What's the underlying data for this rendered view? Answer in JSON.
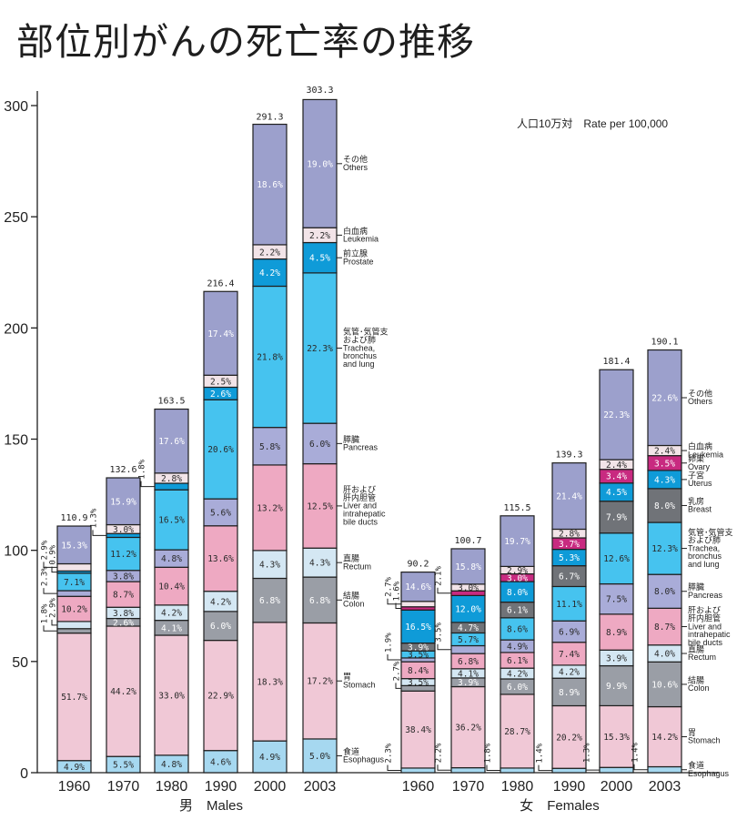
{
  "title": "部位別がんの死亡率の推移",
  "unit_label": "人口10万対　Rate per 100,000",
  "chart_data": {
    "type": "bar",
    "stacked": true,
    "title": "部位別がんの死亡率の推移",
    "ylabel": "人口10万対 Rate per 100,000",
    "xlabel": "",
    "ylim": [
      0,
      300
    ],
    "y_ticks": [
      0,
      50,
      100,
      150,
      200,
      250,
      300
    ],
    "grid": false,
    "segment_values_are": "percent of bar total",
    "groups": [
      {
        "key": "males",
        "name": "男　Males",
        "categories": [
          "1960",
          "1970",
          "1980",
          "1990",
          "2000",
          "2003"
        ],
        "totals": [
          110.9,
          132.6,
          163.5,
          216.4,
          291.3,
          303.3
        ],
        "series": [
          {
            "key": "esophagus",
            "name_ja": "食道",
            "name_en": "Esophagus",
            "color": "#a6d8f0",
            "text_color": "#2a2a2a",
            "values": [
              4.9,
              5.5,
              4.8,
              4.6,
              4.9,
              5.0
            ]
          },
          {
            "key": "stomach",
            "name_ja": "胃",
            "name_en": "Stomach",
            "color": "#f0c8d6",
            "text_color": "#2a2a2a",
            "values": [
              51.7,
              44.2,
              33.0,
              22.9,
              18.3,
              17.2
            ]
          },
          {
            "key": "colon",
            "name_ja": "結腸",
            "name_en": "Colon",
            "color": "#9a9ea6",
            "text_color": "#ffffff",
            "values": [
              1.8,
              2.6,
              4.1,
              6.0,
              6.8,
              6.8
            ]
          },
          {
            "key": "rectum",
            "name_ja": "直腸",
            "name_en": "Rectum",
            "color": "#d4e7f3",
            "text_color": "#2a2a2a",
            "values": [
              2.9,
              3.8,
              4.2,
              4.2,
              4.3,
              4.3
            ]
          },
          {
            "key": "liver",
            "name_ja": "肝および\n肝内胆管",
            "name_en": "Liver and\nintrahepatic\nbile ducts",
            "color": "#eea9c2",
            "text_color": "#2a2a2a",
            "values": [
              10.2,
              8.7,
              10.4,
              13.6,
              13.2,
              12.5
            ]
          },
          {
            "key": "pancreas",
            "name_ja": "膵臓",
            "name_en": "Pancreas",
            "color": "#a9acd8",
            "text_color": "#2a2a2a",
            "values": [
              2.3,
              3.8,
              4.8,
              5.6,
              5.8,
              6.0
            ]
          },
          {
            "key": "lung",
            "name_ja": "気管･気管支\nおよび肺",
            "name_en": "Trachea,\nbronchus\nand lung",
            "color": "#46c3ef",
            "text_color": "#2a2a2a",
            "values": [
              7.1,
              11.2,
              16.5,
              20.6,
              21.8,
              22.3
            ]
          },
          {
            "key": "prostate",
            "name_ja": "前立腺",
            "name_en": "Prostate",
            "color": "#0f9bd8",
            "text_color": "#ffffff",
            "values": [
              0.9,
              1.3,
              1.8,
              2.6,
              4.2,
              4.5
            ]
          },
          {
            "key": "leukemia",
            "name_ja": "白血病",
            "name_en": "Leukemia",
            "color": "#f2e4e8",
            "text_color": "#2a2a2a",
            "values": [
              2.9,
              3.0,
              2.8,
              2.5,
              2.2,
              2.2
            ]
          },
          {
            "key": "others",
            "name_ja": "その他",
            "name_en": "Others",
            "color": "#9ca0cc",
            "text_color": "#ffffff",
            "values": [
              15.3,
              15.9,
              17.6,
              17.4,
              18.6,
              19.0
            ]
          }
        ],
        "callouts": [
          [
            "colon",
            "rectum",
            "pancreas",
            "prostate",
            "leukemia"
          ],
          [
            "prostate"
          ],
          [
            "prostate"
          ],
          [],
          [],
          []
        ]
      },
      {
        "key": "females",
        "name": "女　Females",
        "categories": [
          "1960",
          "1970",
          "1980",
          "1990",
          "2000",
          "2003"
        ],
        "totals": [
          90.2,
          100.7,
          115.5,
          139.3,
          181.4,
          190.1
        ],
        "series": [
          {
            "key": "esophagus",
            "name_ja": "食道",
            "name_en": "Esophagus",
            "color": "#a6d8f0",
            "text_color": "#2a2a2a",
            "values": [
              2.3,
              2.2,
              1.8,
              1.4,
              1.3,
              1.4
            ]
          },
          {
            "key": "stomach",
            "name_ja": "胃",
            "name_en": "Stomach",
            "color": "#f0c8d6",
            "text_color": "#2a2a2a",
            "values": [
              38.4,
              36.2,
              28.7,
              20.2,
              15.3,
              14.2
            ]
          },
          {
            "key": "colon",
            "name_ja": "結腸",
            "name_en": "Colon",
            "color": "#9a9ea6",
            "text_color": "#ffffff",
            "values": [
              2.7,
              3.9,
              6.0,
              8.9,
              9.9,
              10.6
            ]
          },
          {
            "key": "rectum",
            "name_ja": "直腸",
            "name_en": "Rectum",
            "color": "#d4e7f3",
            "text_color": "#2a2a2a",
            "values": [
              3.5,
              4.1,
              4.2,
              4.2,
              3.9,
              4.0
            ]
          },
          {
            "key": "liver",
            "name_ja": "肝および\n肝内胆管",
            "name_en": "Liver and\nintrahepatic\nbile ducts",
            "color": "#eea9c2",
            "text_color": "#2a2a2a",
            "values": [
              8.4,
              6.8,
              6.1,
              7.4,
              8.9,
              8.7
            ]
          },
          {
            "key": "pancreas",
            "name_ja": "膵臓",
            "name_en": "Pancreas",
            "color": "#a9acd8",
            "text_color": "#2a2a2a",
            "values": [
              1.9,
              3.5,
              4.9,
              6.9,
              7.5,
              8.0
            ]
          },
          {
            "key": "lung",
            "name_ja": "気管･気管支\nおよび肺",
            "name_en": "Trachea,\nbronchus\nand lung",
            "color": "#46c3ef",
            "text_color": "#2a2a2a",
            "values": [
              3.5,
              5.7,
              8.6,
              11.1,
              12.6,
              12.3
            ]
          },
          {
            "key": "breast",
            "name_ja": "乳房",
            "name_en": "Breast",
            "color": "#707378",
            "text_color": "#ffffff",
            "values": [
              3.9,
              4.7,
              6.1,
              6.7,
              7.9,
              8.0
            ]
          },
          {
            "key": "uterus",
            "name_ja": "子宮",
            "name_en": "Uterus",
            "color": "#0f9bd8",
            "text_color": "#ffffff",
            "values": [
              16.5,
              12.0,
              8.0,
              5.3,
              4.5,
              4.3
            ]
          },
          {
            "key": "ovary",
            "name_ja": "卵巣",
            "name_en": "Ovary",
            "color": "#c82a80",
            "text_color": "#ffffff",
            "values": [
              1.6,
              2.1,
              3.0,
              3.7,
              3.4,
              3.5
            ]
          },
          {
            "key": "leukemia",
            "name_ja": "白血病",
            "name_en": "Leukemia",
            "color": "#f2e4e8",
            "text_color": "#2a2a2a",
            "values": [
              2.7,
              3.0,
              2.9,
              2.8,
              2.4,
              2.4
            ]
          },
          {
            "key": "others",
            "name_ja": "その他",
            "name_en": "Others",
            "color": "#9ca0cc",
            "text_color": "#ffffff",
            "values": [
              14.6,
              15.8,
              19.7,
              21.4,
              22.3,
              22.6
            ]
          }
        ],
        "callouts": [
          [
            "esophagus",
            "colon",
            "pancreas",
            "ovary",
            "leukemia"
          ],
          [
            "esophagus",
            "pancreas",
            "ovary"
          ],
          [
            "esophagus"
          ],
          [
            "esophagus"
          ],
          [
            "esophagus"
          ],
          [
            "esophagus"
          ]
        ]
      }
    ]
  }
}
